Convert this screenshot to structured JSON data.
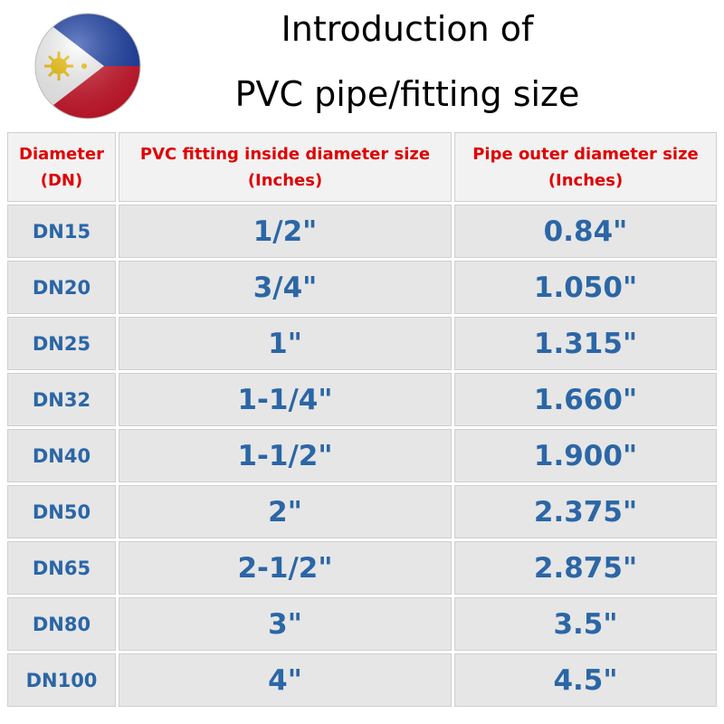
{
  "header": {
    "title_lines": [
      "Introduction of",
      "PVC pipe/fitting size"
    ]
  },
  "table": {
    "columns": [
      [
        "Diameter",
        "(DN)"
      ],
      [
        "PVC fitting inside diameter size",
        "(Inches)"
      ],
      [
        "Pipe outer diameter size",
        "(Inches)"
      ]
    ],
    "rows": [
      [
        "DN15",
        "1/2\"",
        "0.84\""
      ],
      [
        "DN20",
        "3/4\"",
        "1.050\""
      ],
      [
        "DN25",
        "1\"",
        "1.315\""
      ],
      [
        "DN32",
        "1-1/4\"",
        "1.660\""
      ],
      [
        "DN40",
        "1-1/2\"",
        "1.900\""
      ],
      [
        "DN50",
        "2\"",
        "2.375\""
      ],
      [
        "DN65",
        "2-1/2\"",
        "2.875\""
      ],
      [
        "DN80",
        "3\"",
        "3.5\""
      ],
      [
        "DN100",
        "4\"",
        "4.5\""
      ]
    ]
  }
}
